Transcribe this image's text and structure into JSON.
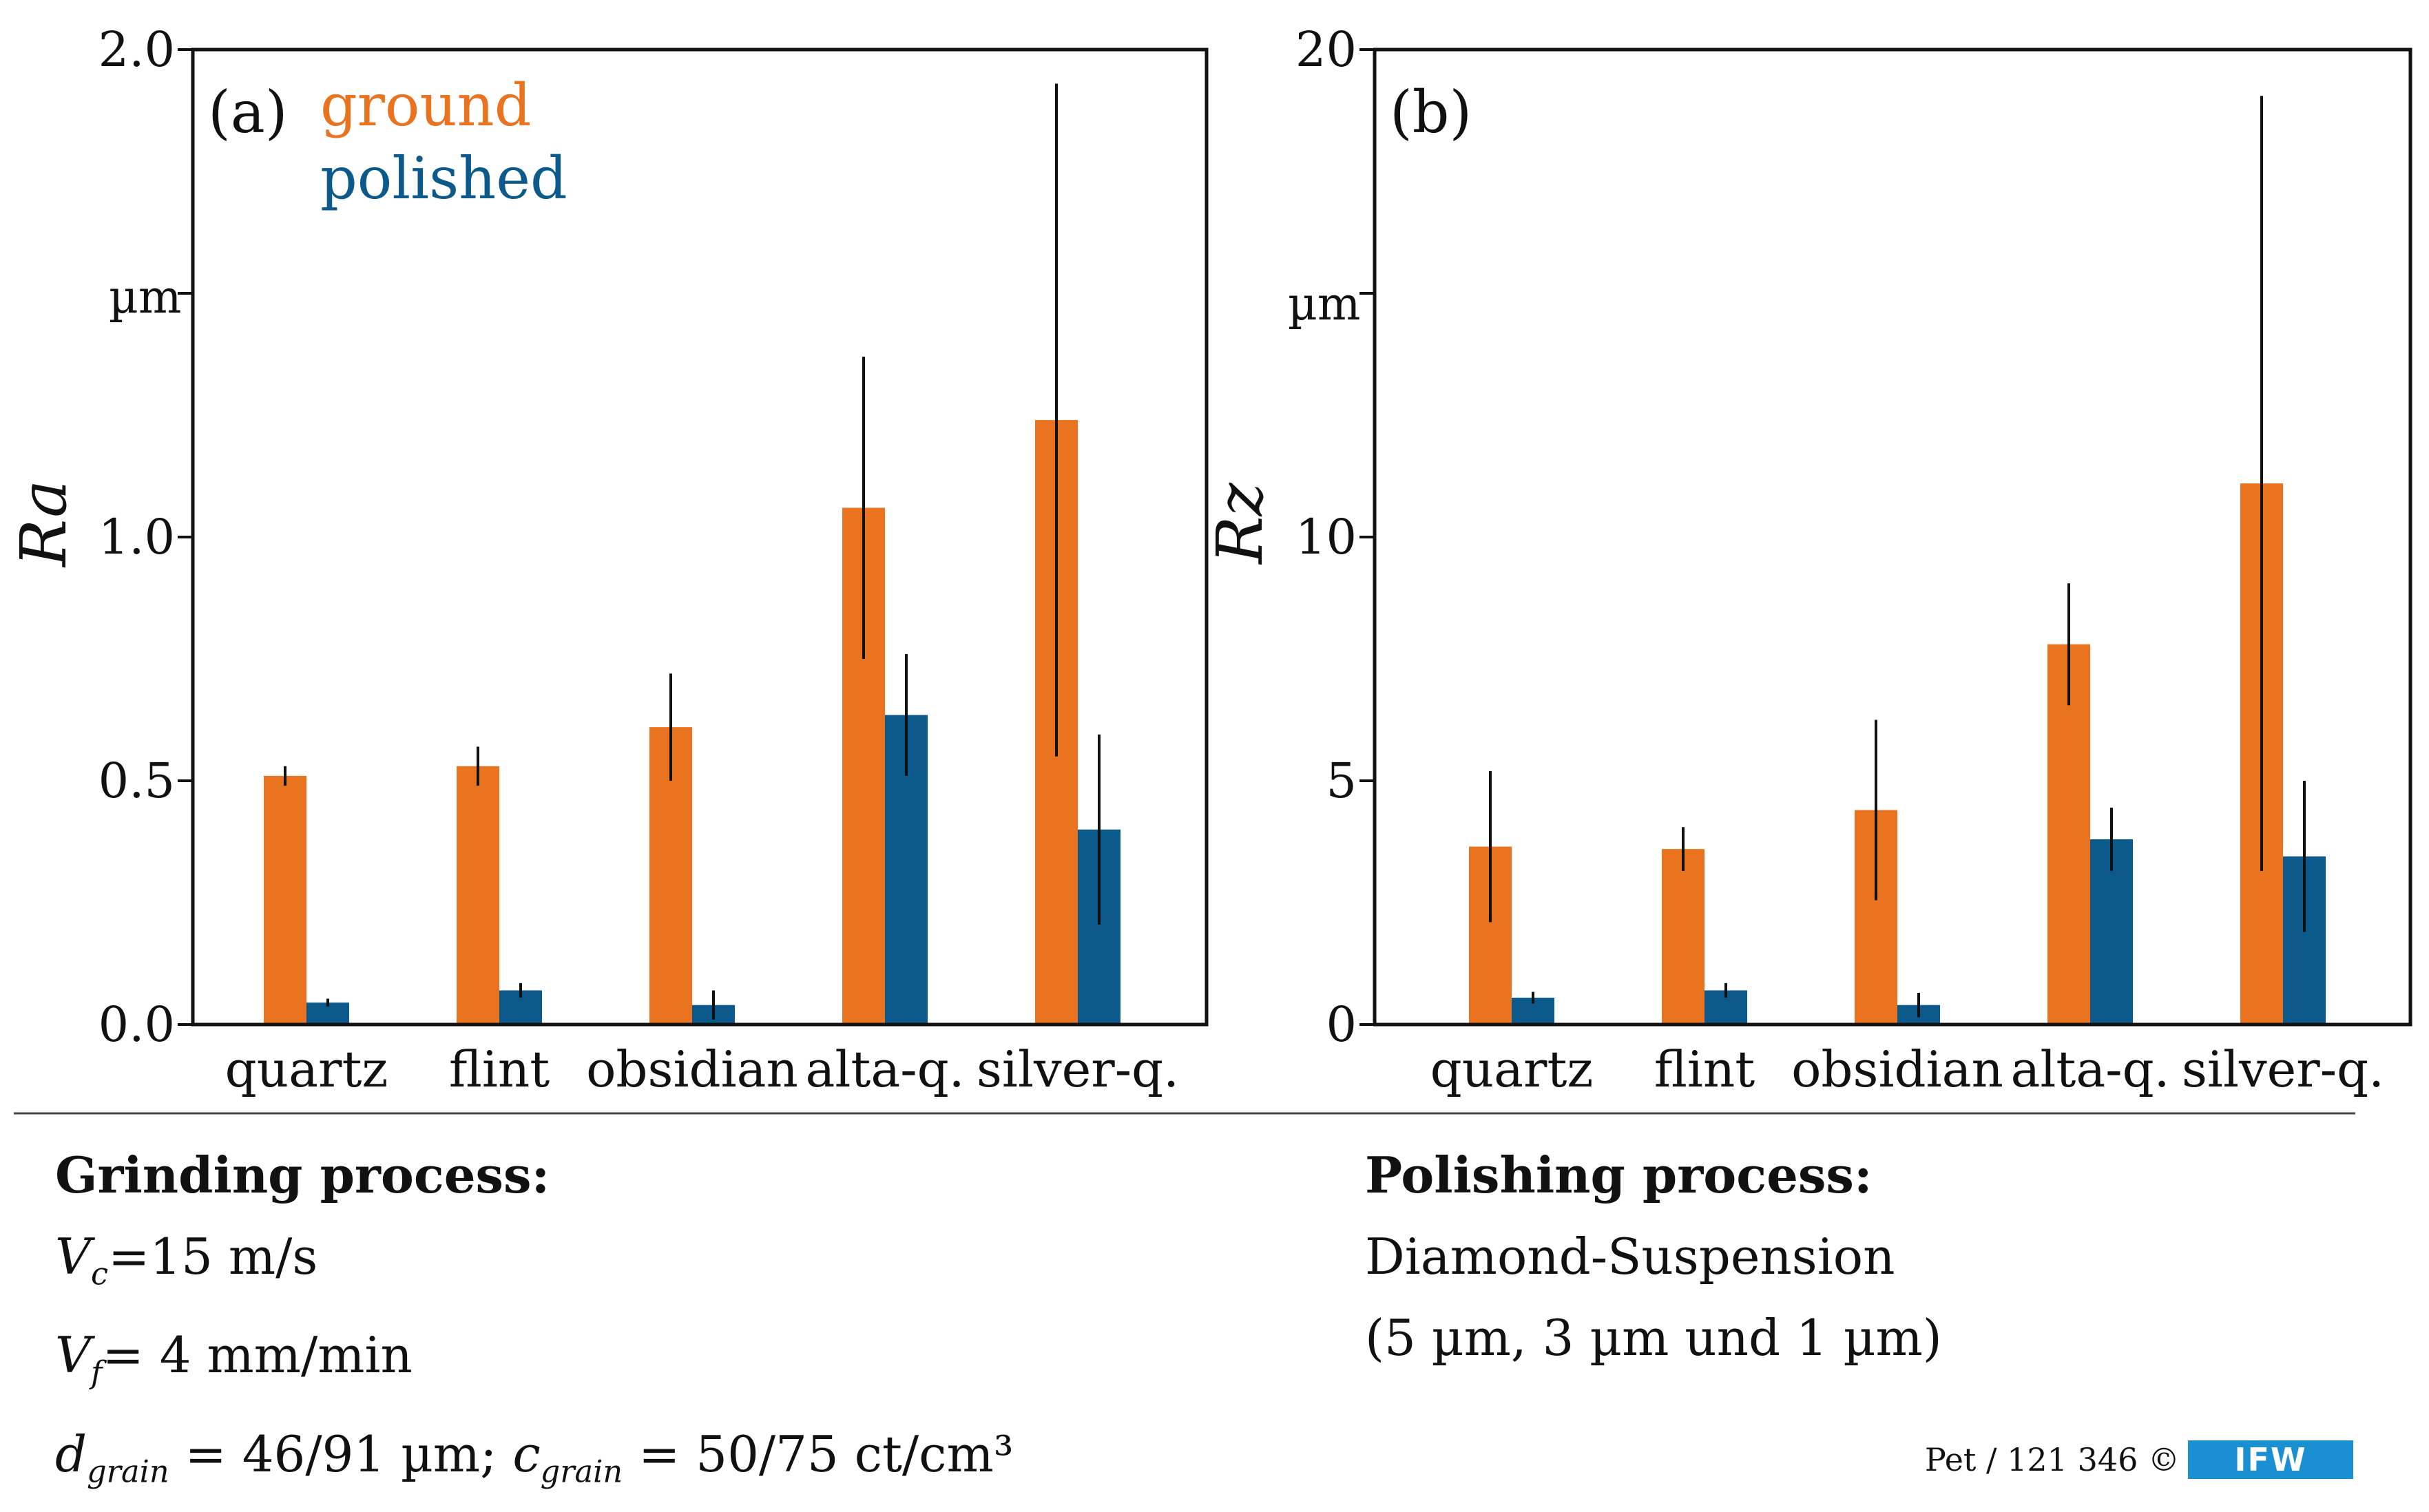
{
  "colors": {
    "ground": "#ea7320",
    "polished": "#0c5a8c",
    "axis": "#111111",
    "logo": "#1a8fd1"
  },
  "chart_data": [
    {
      "type": "bar",
      "panel_label": "(a)",
      "ylabel": "Ra",
      "unit_label": "µm",
      "ylim": [
        0,
        2.0
      ],
      "yticks": [
        0.0,
        0.5,
        1.0,
        1.5,
        2.0
      ],
      "ytick_labels": [
        "0.0",
        "0.5",
        "1.0",
        "",
        "2.0"
      ],
      "categories": [
        "quartz",
        "flint",
        "obsidian",
        "alta-q.",
        "silver-q."
      ],
      "legend": {
        "position": "top-left",
        "entries": [
          "ground",
          "polished"
        ]
      },
      "series": [
        {
          "name": "ground",
          "values": [
            0.51,
            0.53,
            0.61,
            1.06,
            1.24
          ],
          "errors": [
            0.02,
            0.04,
            0.11,
            0.31,
            0.69
          ]
        },
        {
          "name": "polished",
          "values": [
            0.045,
            0.07,
            0.04,
            0.635,
            0.4
          ],
          "errors": [
            0.008,
            0.015,
            0.03,
            0.125,
            0.195
          ]
        }
      ]
    },
    {
      "type": "bar",
      "panel_label": "(b)",
      "ylabel": "Rz",
      "unit_label": "µm",
      "ylim": [
        0,
        20
      ],
      "yticks": [
        0,
        5,
        10,
        15,
        20
      ],
      "ytick_labels": [
        "0",
        "5",
        "10",
        "",
        "20"
      ],
      "categories": [
        "quartz",
        "flint",
        "obsidian",
        "alta-q.",
        "silver-q."
      ],
      "series": [
        {
          "name": "ground",
          "values": [
            3.65,
            3.6,
            4.4,
            7.8,
            11.1
          ],
          "errors": [
            1.55,
            0.45,
            1.85,
            1.25,
            7.95
          ]
        },
        {
          "name": "polished",
          "values": [
            0.55,
            0.7,
            0.4,
            3.8,
            3.45
          ],
          "errors": [
            0.12,
            0.15,
            0.25,
            0.65,
            1.55
          ]
        }
      ]
    }
  ],
  "notes": {
    "grinding": {
      "header": "Grinding process:",
      "vc": {
        "var": "V",
        "sub": "c",
        "text": "=15 m/s"
      },
      "vf": {
        "var": "V",
        "sub": "f",
        "text": "= 4 mm/min"
      },
      "grain": {
        "d_var": "d",
        "d_sub": "grain",
        "d_text": " = 46/91 µm; ",
        "c_var": "c",
        "c_sub": "grain",
        "c_text": " = 50/75 ct/cm³"
      }
    },
    "polishing": {
      "header": "Polishing process:",
      "line1": "Diamond-Suspension",
      "line2": "(5 µm, 3 µm und 1 µm)"
    }
  },
  "footer": {
    "ref": "Pet / 121 346 ©",
    "logo": "IFW"
  }
}
